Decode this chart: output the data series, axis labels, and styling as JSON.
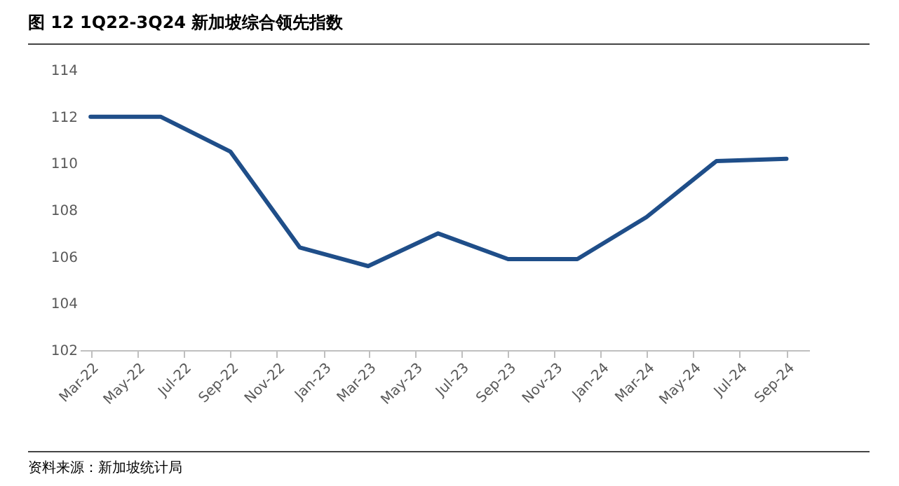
{
  "chart_data": {
    "type": "line",
    "title": "图 12 1Q22-3Q24 新加坡综合领先指数",
    "x": [
      "2022-03",
      "2022-06",
      "2022-09",
      "2022-12",
      "2023-03",
      "2023-06",
      "2023-09",
      "2023-12",
      "2024-03",
      "2024-06",
      "2024-09"
    ],
    "series": [
      {
        "color": "#1f4e89",
        "values": [
          112,
          112,
          110.5,
          106.4,
          105.6,
          107,
          105.9,
          105.9,
          107.7,
          110.1,
          110.2
        ]
      }
    ],
    "xlim": [
      "2022-02-15",
      "2024-10-01"
    ],
    "xticks": [
      {
        "value": "2022-03",
        "label": "Mar-22"
      },
      {
        "value": "2022-05",
        "label": "May-22"
      },
      {
        "value": "2022-07",
        "label": "Jul-22"
      },
      {
        "value": "2022-09",
        "label": "Sep-22"
      },
      {
        "value": "2022-11",
        "label": "Nov-22"
      },
      {
        "value": "2023-01",
        "label": "Jan-23"
      },
      {
        "value": "2023-03",
        "label": "Mar-23"
      },
      {
        "value": "2023-05",
        "label": "May-23"
      },
      {
        "value": "2023-07",
        "label": "Jul-23"
      },
      {
        "value": "2023-09",
        "label": "Sep-23"
      },
      {
        "value": "2023-11",
        "label": "Nov-23"
      },
      {
        "value": "2024-01",
        "label": "Jan-24"
      },
      {
        "value": "2024-03",
        "label": "Mar-24"
      },
      {
        "value": "2024-05",
        "label": "May-24"
      },
      {
        "value": "2024-07",
        "label": "Jul-24"
      },
      {
        "value": "2024-09",
        "label": "Sep-24"
      }
    ],
    "ylim": [
      102,
      114
    ],
    "yticks": [
      102,
      104,
      106,
      108,
      110,
      112,
      114
    ],
    "grid": false,
    "legend": false,
    "marker": "none",
    "line_style": "solid",
    "annotations": [
      "资料来源：新加坡统计局"
    ]
  }
}
